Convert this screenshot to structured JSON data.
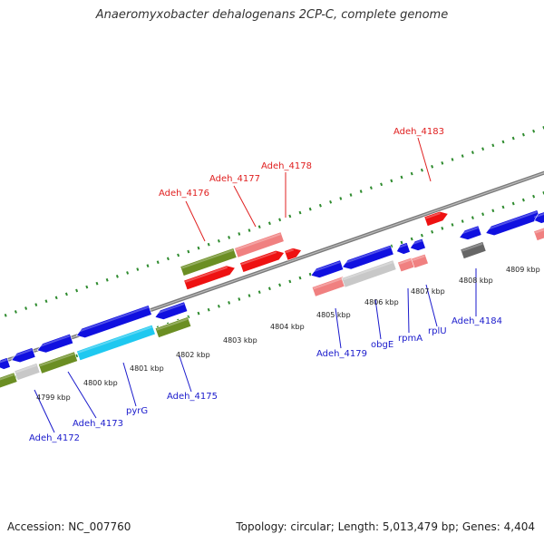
{
  "title": "Anaeromyxobacter dehalogenans 2CP-C, complete genome",
  "accession": "Accession: NC_007760",
  "topology": "Topology: circular; Length: 5,013,479 bp; Genes: 4,404",
  "colors": {
    "backbone": "#7a7a7a",
    "tick": "#2e8b2e",
    "label_forward": "#e02020",
    "label_reverse": "#1a1acc",
    "blue": "#1010e0",
    "red": "#ee1111",
    "pink": "#f08080",
    "olive": "#6b8e23",
    "gray": "#c8c8c8",
    "cyan": "#1ec8f0",
    "darkgray": "#666666"
  },
  "kbp_ticks": [
    "4799 kbp",
    "4800 kbp",
    "4801 kbp",
    "4802 kbp",
    "4803 kbp",
    "4804 kbp",
    "4805 kbp",
    "4806 kbp",
    "4807 kbp",
    "4808 kbp",
    "4809 kbp"
  ],
  "gene_labels": [
    {
      "text": "Adeh_4176",
      "strand": "forward"
    },
    {
      "text": "Adeh_4177",
      "strand": "forward"
    },
    {
      "text": "Adeh_4178",
      "strand": "forward"
    },
    {
      "text": "Adeh_4183",
      "strand": "forward"
    },
    {
      "text": "Adeh_4172",
      "strand": "reverse"
    },
    {
      "text": "Adeh_4173",
      "strand": "reverse"
    },
    {
      "text": "pyrG",
      "strand": "reverse"
    },
    {
      "text": "Adeh_4175",
      "strand": "reverse"
    },
    {
      "text": "Adeh_4179",
      "strand": "reverse"
    },
    {
      "text": "obgE",
      "strand": "reverse"
    },
    {
      "text": "rpmA",
      "strand": "reverse"
    },
    {
      "text": "rplU",
      "strand": "reverse"
    },
    {
      "text": "Adeh_4184",
      "strand": "reverse"
    }
  ]
}
